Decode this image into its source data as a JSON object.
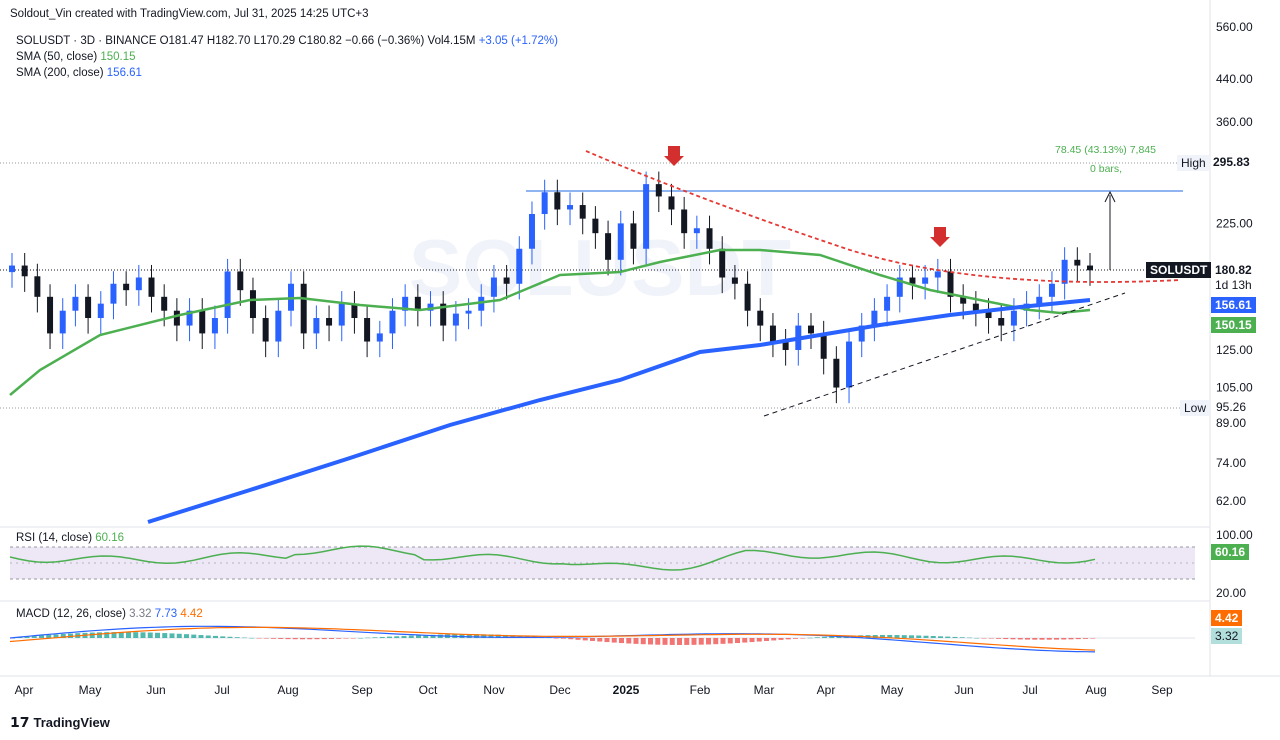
{
  "header": {
    "credit": "Soldout_Vin created with TradingView.com, Jul 31, 2025 14:25 UTC+3"
  },
  "legend": {
    "symbol": "SOLUSDT · 3D · BINANCE",
    "open": "O181.47",
    "high": "H182.70",
    "low": "L170.29",
    "close": "C180.82",
    "change": "−0.66 (−0.36%)",
    "volume": "Vol4.15M",
    "vol_change": "+3.05 (+1.72%)",
    "sma50_label": "SMA (50, close)",
    "sma50_value": "150.15",
    "sma200_label": "SMA (200, close)",
    "sma200_value": "156.61"
  },
  "rsi": {
    "label": "RSI (14, close)",
    "value": "60.16",
    "axis": [
      "100.00",
      "20.00"
    ]
  },
  "macd": {
    "label": "MACD (12, 26, close)",
    "macd": "3.32",
    "signal": "7.73",
    "hist": "4.42"
  },
  "price_axis": {
    "ticks": [
      "560.00",
      "440.00",
      "360.00",
      "295.83",
      "225.00",
      "180.82",
      "156.61",
      "150.15",
      "125.00",
      "105.00",
      "95.26",
      "89.00",
      "74.00",
      "62.00"
    ]
  },
  "tags": {
    "high_label": "High",
    "high_value": "295.83",
    "low_label": "Low",
    "low_value": "95.26",
    "symbol": "SOLUSDT",
    "price": "180.82",
    "countdown": "1d 13h",
    "sma200": "156.61",
    "sma50": "150.15",
    "rsi": "60.16",
    "macd_orange": "4.42",
    "macd_teal": "3.32"
  },
  "measure": {
    "line1": "78.45 (43.13%) 7,845",
    "line2": "0 bars,"
  },
  "watermark": "SOLUSDT",
  "time_axis": [
    "Apr",
    "May",
    "Jun",
    "Jul",
    "Aug",
    "Sep",
    "Oct",
    "Nov",
    "Dec",
    "2025",
    "Feb",
    "Mar",
    "Apr",
    "May",
    "Jun",
    "Jul",
    "Aug",
    "Sep"
  ],
  "footer": "TradingView",
  "colors": {
    "up": "#2962ff",
    "down": "#131722",
    "sma50": "#4caf50",
    "sma200": "#2962ff",
    "resistance": "#e53935",
    "arrow": "#d32f2f",
    "rsi_band": "#ede7f6"
  },
  "chart_data": {
    "type": "candlestick",
    "title": "SOLUSDT · 3D · BINANCE",
    "y_scale": "log",
    "x_range": [
      "2024-03-30",
      "2025-09-15"
    ],
    "series": [
      {
        "name": "SOLUSDT",
        "ohlc_close_approx": [
          185,
          176,
          160,
          135,
          150,
          160,
          145,
          155,
          170,
          165,
          175,
          160,
          150,
          140,
          150,
          135,
          145,
          180,
          165,
          145,
          130,
          150,
          170,
          135,
          145,
          140,
          155,
          145,
          130,
          135,
          150,
          160,
          150,
          155,
          140,
          148,
          150,
          160,
          175,
          170,
          200,
          235,
          260,
          240,
          245,
          230,
          215,
          190,
          225,
          200,
          270,
          255,
          240,
          215,
          220,
          200,
          175,
          170,
          150,
          140,
          130,
          125,
          140,
          135,
          120,
          105,
          130,
          140,
          150,
          160,
          175,
          170,
          175,
          180,
          160,
          155,
          150,
          145,
          140,
          150,
          155,
          160,
          170,
          190,
          185,
          181
        ]
      },
      {
        "name": "SMA (50, close)",
        "last": 150.15
      },
      {
        "name": "SMA (200, close)",
        "last": 156.61
      }
    ],
    "levels": {
      "high": 295.83,
      "low": 95.26,
      "last": 180.82
    },
    "rsi": {
      "last": 60.16,
      "range": [
        20,
        100
      ]
    },
    "macd": {
      "macd": 3.32,
      "signal": 7.73,
      "hist": 4.42
    }
  }
}
